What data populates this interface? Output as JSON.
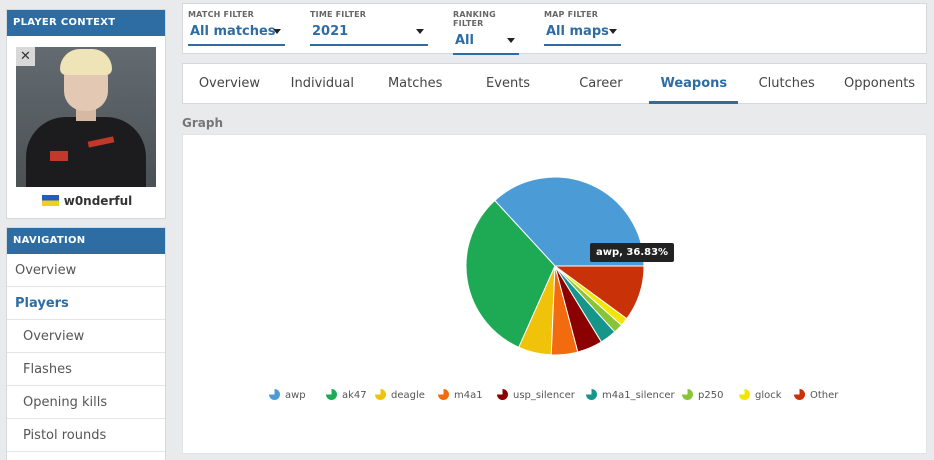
{
  "sidebar": {
    "context_title": "PLAYER CONTEXT",
    "player_name": "w0nderful",
    "close_glyph": "✕",
    "nav_title": "NAVIGATION",
    "nav_items": [
      {
        "label": "Overview"
      },
      {
        "label": "Players"
      },
      {
        "label": "Overview"
      },
      {
        "label": "Flashes"
      },
      {
        "label": "Opening kills"
      },
      {
        "label": "Pistol rounds"
      }
    ]
  },
  "filters": [
    {
      "label": "MATCH FILTER",
      "value": "All matches"
    },
    {
      "label": "TIME FILTER",
      "value": "2021"
    },
    {
      "label": "RANKING FILTER",
      "value": "All"
    },
    {
      "label": "MAP FILTER",
      "value": "All maps"
    }
  ],
  "tabs": [
    "Overview",
    "Individual",
    "Matches",
    "Events",
    "Career",
    "Weapons",
    "Clutches",
    "Opponents"
  ],
  "active_tab": "Weapons",
  "graph": {
    "title": "Graph",
    "tooltip": "awp, 36.83%"
  },
  "chart_data": {
    "type": "pie",
    "unit": "%",
    "slices": [
      {
        "name": "awp",
        "value": 36.83,
        "color": "#4b9cd6"
      },
      {
        "name": "ak47",
        "value": 31.5,
        "color": "#1eaa55"
      },
      {
        "name": "deagle",
        "value": 6.0,
        "color": "#f0c20a"
      },
      {
        "name": "m4a1",
        "value": 4.8,
        "color": "#f26b0f"
      },
      {
        "name": "usp_silencer",
        "value": 4.6,
        "color": "#8b0000"
      },
      {
        "name": "m4a1_silencer",
        "value": 3.0,
        "color": "#16968a"
      },
      {
        "name": "p250",
        "value": 1.7,
        "color": "#88c43a"
      },
      {
        "name": "glock",
        "value": 1.5,
        "color": "#f2e600"
      },
      {
        "name": "Other",
        "value": 10.07,
        "color": "#c93208"
      }
    ],
    "legend": "bottom"
  }
}
